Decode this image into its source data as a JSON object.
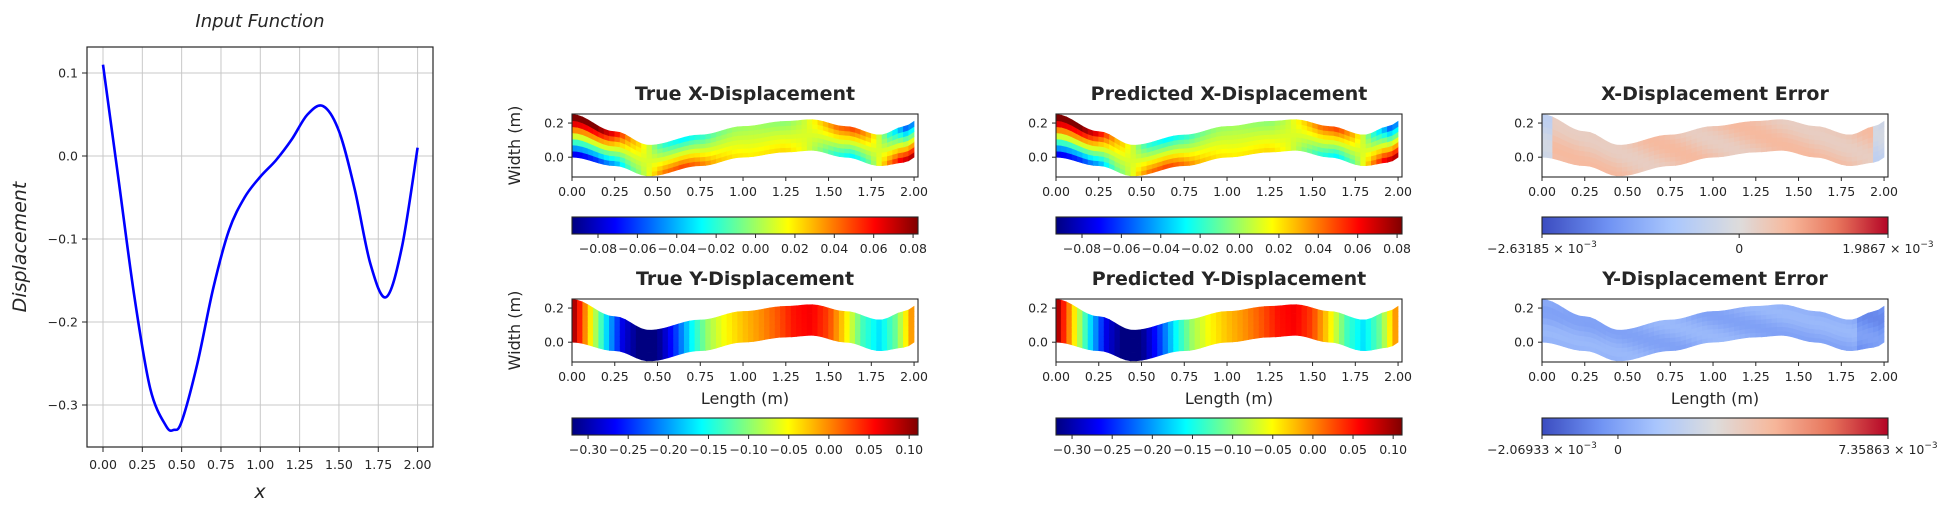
{
  "chart_data": [
    {
      "type": "line",
      "title": "Input Function",
      "xlabel": "x",
      "ylabel": "Displacement",
      "xlim": [
        -0.1,
        2.1
      ],
      "ylim": [
        -0.35,
        0.131
      ],
      "grid": true,
      "xticks": [
        0,
        0.25,
        0.5,
        0.75,
        1.0,
        1.25,
        1.5,
        1.75,
        2.0
      ],
      "xtick_labels": [
        "0.00",
        "0.25",
        "0.50",
        "0.75",
        "1.00",
        "1.25",
        "1.50",
        "1.75",
        "2.00"
      ],
      "yticks": [
        0.1,
        0.0,
        -0.1,
        -0.2,
        -0.3
      ],
      "ytick_labels": [
        "0.1",
        "0.0",
        "−0.1",
        "−0.2",
        "−0.3"
      ],
      "series": [
        {
          "name": "Input Function",
          "color": "#0000ff",
          "x": [
            0,
            0.1,
            0.2,
            0.3,
            0.4,
            0.45,
            0.5,
            0.6,
            0.7,
            0.8,
            0.9,
            1.0,
            1.1,
            1.2,
            1.3,
            1.4,
            1.5,
            1.6,
            1.7,
            1.8,
            1.9,
            2.0
          ],
          "y": [
            0.11,
            -0.03,
            -0.17,
            -0.28,
            -0.325,
            -0.33,
            -0.32,
            -0.25,
            -0.16,
            -0.09,
            -0.05,
            -0.025,
            -0.005,
            0.02,
            0.05,
            0.06,
            0.03,
            -0.04,
            -0.13,
            -0.17,
            -0.11,
            0.01
          ]
        }
      ]
    },
    {
      "type": "heatmap",
      "title": "True X-Displacement",
      "field": "ux",
      "ylabel": "Width (m)",
      "xlabel": "",
      "colormap": "jet",
      "colorbar": {
        "min": -0.0932,
        "max": 0.0825,
        "norm": "linear",
        "ticks": [
          {
            "v": -0.08,
            "m": "−0.08"
          },
          {
            "v": -0.06,
            "m": "−0.06"
          },
          {
            "v": -0.04,
            "m": "−0.04"
          },
          {
            "v": -0.02,
            "m": "−0.02"
          },
          {
            "v": 0,
            "m": "0.00"
          },
          {
            "v": 0.02,
            "m": "0.02"
          },
          {
            "v": 0.04,
            "m": "0.04"
          },
          {
            "v": 0.06,
            "m": "0.06"
          },
          {
            "v": 0.08,
            "m": "0.08"
          }
        ]
      }
    },
    {
      "type": "heatmap",
      "title": "Predicted X-Displacement",
      "field": "ux",
      "ylabel": "",
      "xlabel": "",
      "colormap": "jet",
      "colorbar": {
        "min": -0.0932,
        "max": 0.0825,
        "norm": "linear",
        "ticks": [
          {
            "v": -0.08,
            "m": "−0.08"
          },
          {
            "v": -0.06,
            "m": "−0.06"
          },
          {
            "v": -0.04,
            "m": "−0.04"
          },
          {
            "v": -0.02,
            "m": "−0.02"
          },
          {
            "v": 0,
            "m": "0.00"
          },
          {
            "v": 0.02,
            "m": "0.02"
          },
          {
            "v": 0.04,
            "m": "0.04"
          },
          {
            "v": 0.06,
            "m": "0.06"
          },
          {
            "v": 0.08,
            "m": "0.08"
          }
        ]
      }
    },
    {
      "type": "heatmap",
      "title": "X-Displacement Error",
      "field": "ex",
      "ylabel": "",
      "xlabel": "",
      "colormap": "coolwarm",
      "colorbar": {
        "min": -0.00263185,
        "max": 0.0019867,
        "norm": "twoslope",
        "ticks": [
          {
            "v": -0.00263185,
            "m": "−2.63185 × 10",
            "e": "−3"
          },
          {
            "v": 0,
            "m": "0"
          },
          {
            "v": 0.0019867,
            "m": "1.9867 × 10",
            "e": "−3"
          }
        ]
      }
    },
    {
      "type": "heatmap",
      "title": "True Y-Displacement",
      "field": "uy",
      "ylabel": "Width (m)",
      "xlabel": "Length (m)",
      "colormap": "jet",
      "colorbar": {
        "min": -0.32,
        "max": 0.111,
        "norm": "linear",
        "ticks": [
          {
            "v": -0.3,
            "m": "−0.30"
          },
          {
            "v": -0.25,
            "m": "−0.25"
          },
          {
            "v": -0.2,
            "m": "−0.20"
          },
          {
            "v": -0.15,
            "m": "−0.15"
          },
          {
            "v": -0.1,
            "m": "−0.10"
          },
          {
            "v": -0.05,
            "m": "−0.05"
          },
          {
            "v": 0,
            "m": "0.00"
          },
          {
            "v": 0.05,
            "m": "0.05"
          },
          {
            "v": 0.1,
            "m": "0.10"
          }
        ]
      }
    },
    {
      "type": "heatmap",
      "title": "Predicted Y-Displacement",
      "field": "uy",
      "ylabel": "",
      "xlabel": "Length (m)",
      "colormap": "jet",
      "colorbar": {
        "min": -0.32,
        "max": 0.111,
        "norm": "linear",
        "ticks": [
          {
            "v": -0.3,
            "m": "−0.30"
          },
          {
            "v": -0.25,
            "m": "−0.25"
          },
          {
            "v": -0.2,
            "m": "−0.20"
          },
          {
            "v": -0.15,
            "m": "−0.15"
          },
          {
            "v": -0.1,
            "m": "−0.10"
          },
          {
            "v": -0.05,
            "m": "−0.05"
          },
          {
            "v": 0,
            "m": "0.00"
          },
          {
            "v": 0.05,
            "m": "0.05"
          },
          {
            "v": 0.1,
            "m": "0.10"
          }
        ]
      }
    },
    {
      "type": "heatmap",
      "title": "Y-Displacement Error",
      "field": "ey",
      "ylabel": "",
      "xlabel": "Length (m)",
      "colormap": "coolwarm",
      "colorbar": {
        "min": -0.00206933,
        "max": 0.00735863,
        "norm": "linear",
        "ticks": [
          {
            "v": -0.00206933,
            "m": "−2.06933 × 10",
            "e": "−3"
          },
          {
            "v": 0,
            "m": "0"
          },
          {
            "v": 0.00735863,
            "m": "7.35863 × 10",
            "e": "−3"
          }
        ]
      }
    }
  ],
  "panel_axes": {
    "xticks": [
      0,
      0.25,
      0.5,
      0.75,
      1.0,
      1.25,
      1.5,
      1.75,
      2.0
    ],
    "xtick_labels": [
      "0.00",
      "0.25",
      "0.50",
      "0.75",
      "1.00",
      "1.25",
      "1.50",
      "1.75",
      "2.00"
    ],
    "xlim": [
      0,
      2.023
    ],
    "yticks": [
      0.0,
      0.2
    ],
    "ytick_labels": [
      "0.0",
      "0.2"
    ],
    "ylim": [
      -0.116,
      0.253
    ]
  }
}
